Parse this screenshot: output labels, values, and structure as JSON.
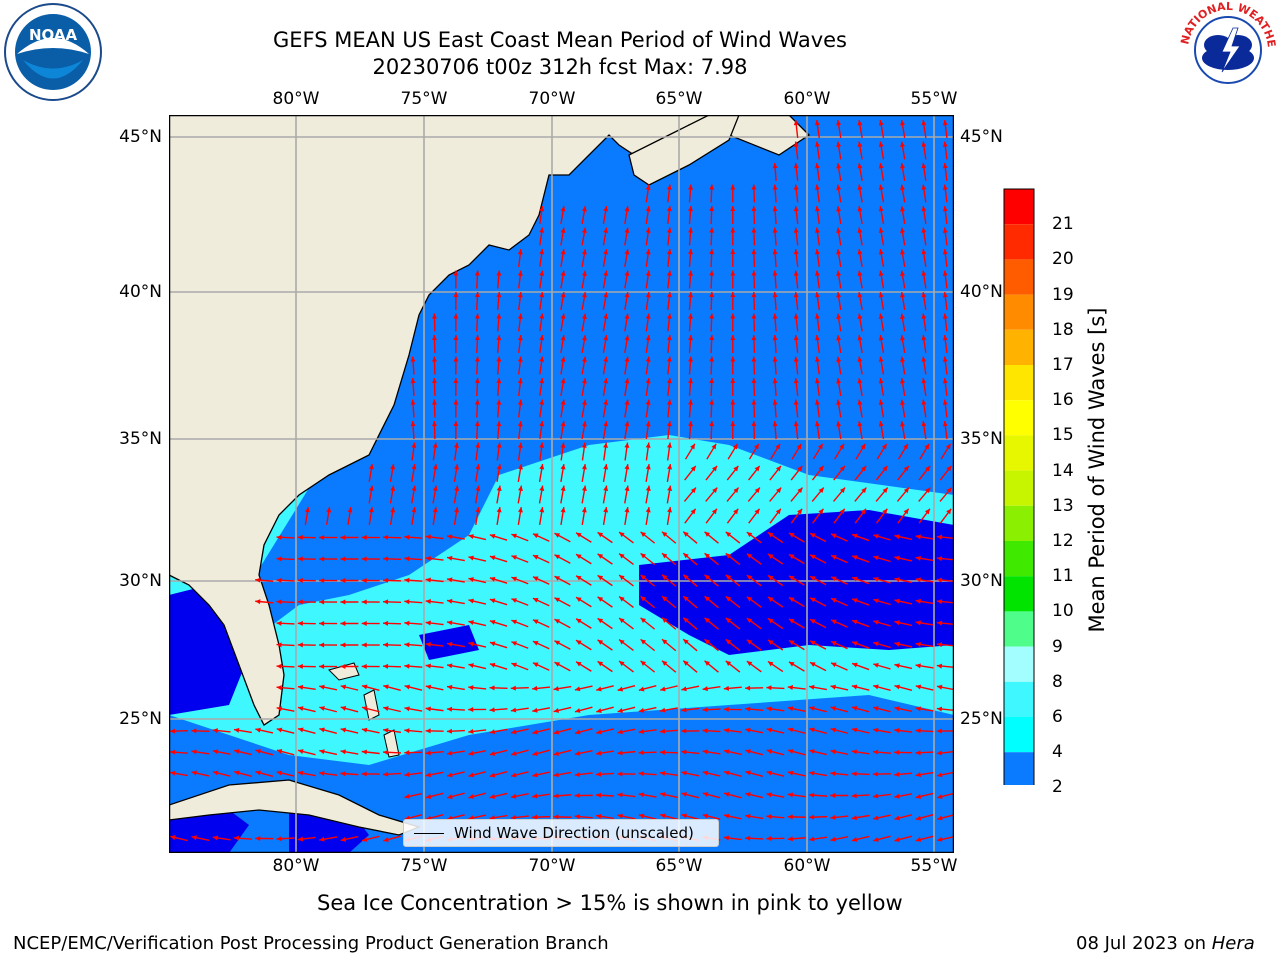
{
  "header": {
    "title_line1": "GEFS MEAN US East Coast Mean Period of Wind Waves",
    "title_line2": "20230706 t00z 312h fcst   Max: 7.98"
  },
  "logos": {
    "left": "NOAA",
    "right": "NATIONAL WEATHER SERVICE"
  },
  "map": {
    "lon_labels": [
      "80°W",
      "75°W",
      "70°W",
      "65°W",
      "60°W",
      "55°W"
    ],
    "lat_labels": [
      "45°N",
      "40°N",
      "35°N",
      "30°N",
      "25°N"
    ],
    "legend_text": "Wind Wave Direction (unscaled)",
    "land_color": "#efecdc",
    "arrow_color": "#ff0000",
    "grid_color": "#aaaaaa"
  },
  "colorbar": {
    "label": "Mean Period of Wind Waves [s]",
    "ticks": [
      "2",
      "4",
      "6",
      "8",
      "9",
      "10",
      "11",
      "12",
      "13",
      "14",
      "15",
      "16",
      "17",
      "18",
      "19",
      "20",
      "21"
    ],
    "under_color": "#0000ee",
    "colors": [
      "#0a7bff",
      "#00ffff",
      "#3ff7ff",
      "#a3ffff",
      "#4efd8a",
      "#00e400",
      "#3fea00",
      "#8aef00",
      "#c7f500",
      "#e6f700",
      "#ffff00",
      "#ffe600",
      "#ffb300",
      "#ff8c00",
      "#ff5c00",
      "#ff2a00",
      "#ff0000"
    ]
  },
  "chart_data": {
    "type": "heatmap",
    "title": "GEFS MEAN US East Coast Mean Period of Wind Waves",
    "subtitle": "20230706 t00z 312h fcst   Max: 7.98",
    "variable": "Mean Period of Wind Waves [s]",
    "xlim": [
      -85,
      -54.2
    ],
    "ylim": [
      20.5,
      45.8
    ],
    "max_value": 7.98
  },
  "footer": {
    "note": "Sea Ice Concentration > 15% is shown in pink to yellow",
    "left": "NCEP/EMC/Verification Post Processing Product Generation Branch",
    "right_date": "08 Jul 2023 on ",
    "right_machine": "Hera"
  }
}
